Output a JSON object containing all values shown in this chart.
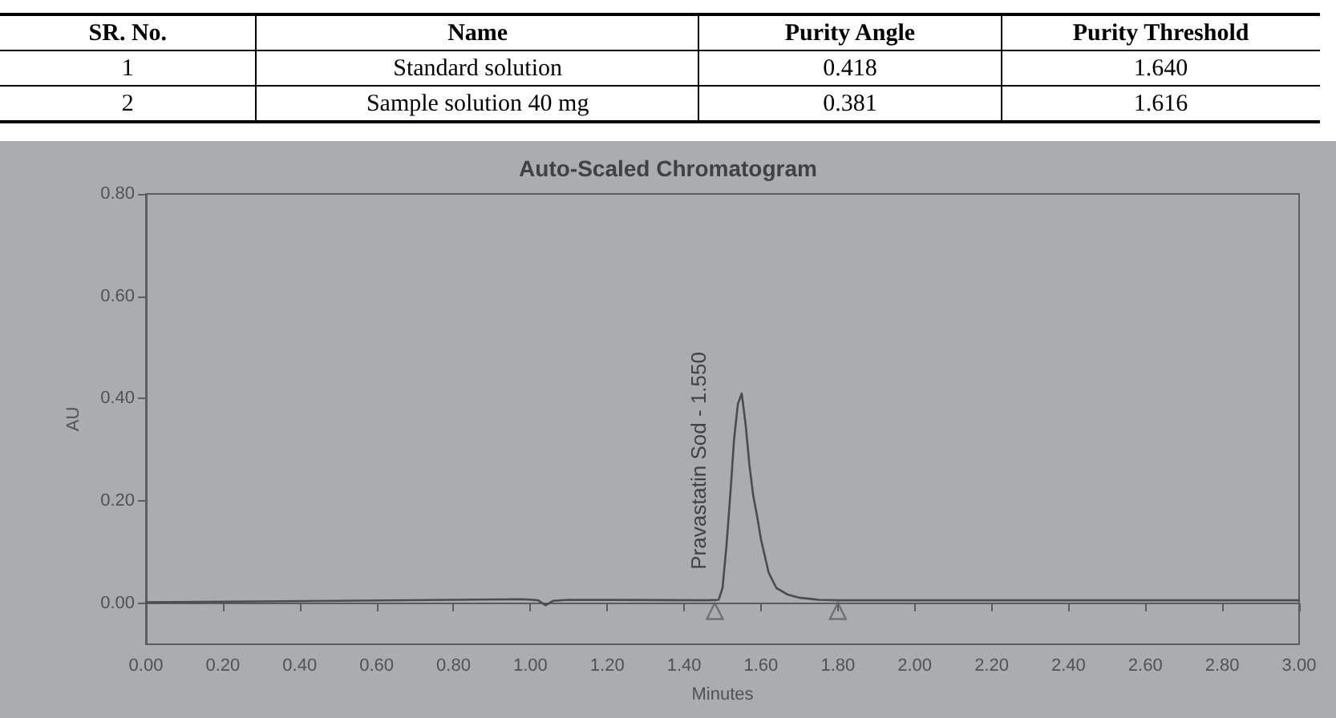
{
  "chart_data": [
    {
      "type": "other",
      "categories": [
        "SR. No.",
        "Name",
        "Purity Angle",
        "Purity Threshold"
      ],
      "cell_labels": [
        [
          "1",
          "Standard solution",
          "0.418",
          "1.640"
        ],
        [
          "2",
          "Sample solution 40 mg",
          "0.381",
          "1.616"
        ]
      ]
    },
    {
      "type": "line",
      "title": "Auto-Scaled Chromatogram",
      "xlabel": "Minutes",
      "ylabel": "AU",
      "xlim": [
        0,
        3
      ],
      "xticks": [
        {
          "value": 0,
          "label": "0.00"
        },
        {
          "value": 0.2,
          "label": "0.20"
        },
        {
          "value": 0.4,
          "label": "0.40"
        },
        {
          "value": 0.6,
          "label": "0.60"
        },
        {
          "value": 0.8,
          "label": "0.80"
        },
        {
          "value": 1,
          "label": "1.00"
        },
        {
          "value": 1.2,
          "label": "1.20"
        },
        {
          "value": 1.4,
          "label": "1.40"
        },
        {
          "value": 1.6,
          "label": "1.60"
        },
        {
          "value": 1.8,
          "label": "1.80"
        },
        {
          "value": 2,
          "label": "2.00"
        },
        {
          "value": 2.2,
          "label": "2.20"
        },
        {
          "value": 2.4,
          "label": "2.40"
        },
        {
          "value": 2.6,
          "label": "2.60"
        },
        {
          "value": 2.8,
          "label": "2.80"
        },
        {
          "value": 3,
          "label": "3.00"
        }
      ],
      "ylim": [
        -0.08,
        0.8
      ],
      "yticks": [
        {
          "value": 0,
          "label": "0.00"
        },
        {
          "value": 0.2,
          "label": "0.20"
        },
        {
          "value": 0.4,
          "label": "0.40"
        },
        {
          "value": 0.6,
          "label": "0.60"
        },
        {
          "value": 0.8,
          "label": "0.80"
        }
      ],
      "series": [
        {
          "color": "#4a4d4d",
          "x": [
            0,
            0.5,
            0.98,
            1.02,
            1.04,
            1.06,
            1.1,
            1.46,
            1.49,
            1.5,
            1.51,
            1.52,
            1.53,
            1.54,
            1.55,
            1.56,
            1.57,
            1.58,
            1.59,
            1.6,
            1.62,
            1.64,
            1.67,
            1.7,
            1.75,
            1.8,
            2.4,
            3
          ],
          "values": [
            0.002,
            0.005,
            0.008,
            0.006,
            -0.004,
            0.005,
            0.007,
            0.006,
            0.007,
            0.03,
            0.11,
            0.21,
            0.32,
            0.39,
            0.41,
            0.35,
            0.27,
            0.21,
            0.17,
            0.125,
            0.06,
            0.03,
            0.017,
            0.011,
            0.007,
            0.006,
            0.006,
            0.006
          ]
        },
        {
          "type": "scatter",
          "marker": "triangle",
          "color": "#5e6262",
          "x": [
            1.48,
            1.8
          ],
          "values": [
            -0.015,
            -0.015
          ]
        }
      ],
      "annotations": [
        {
          "text": "Pravastatin Sod - 1.550",
          "x": 1.55,
          "y": 0.41
        }
      ]
    }
  ]
}
